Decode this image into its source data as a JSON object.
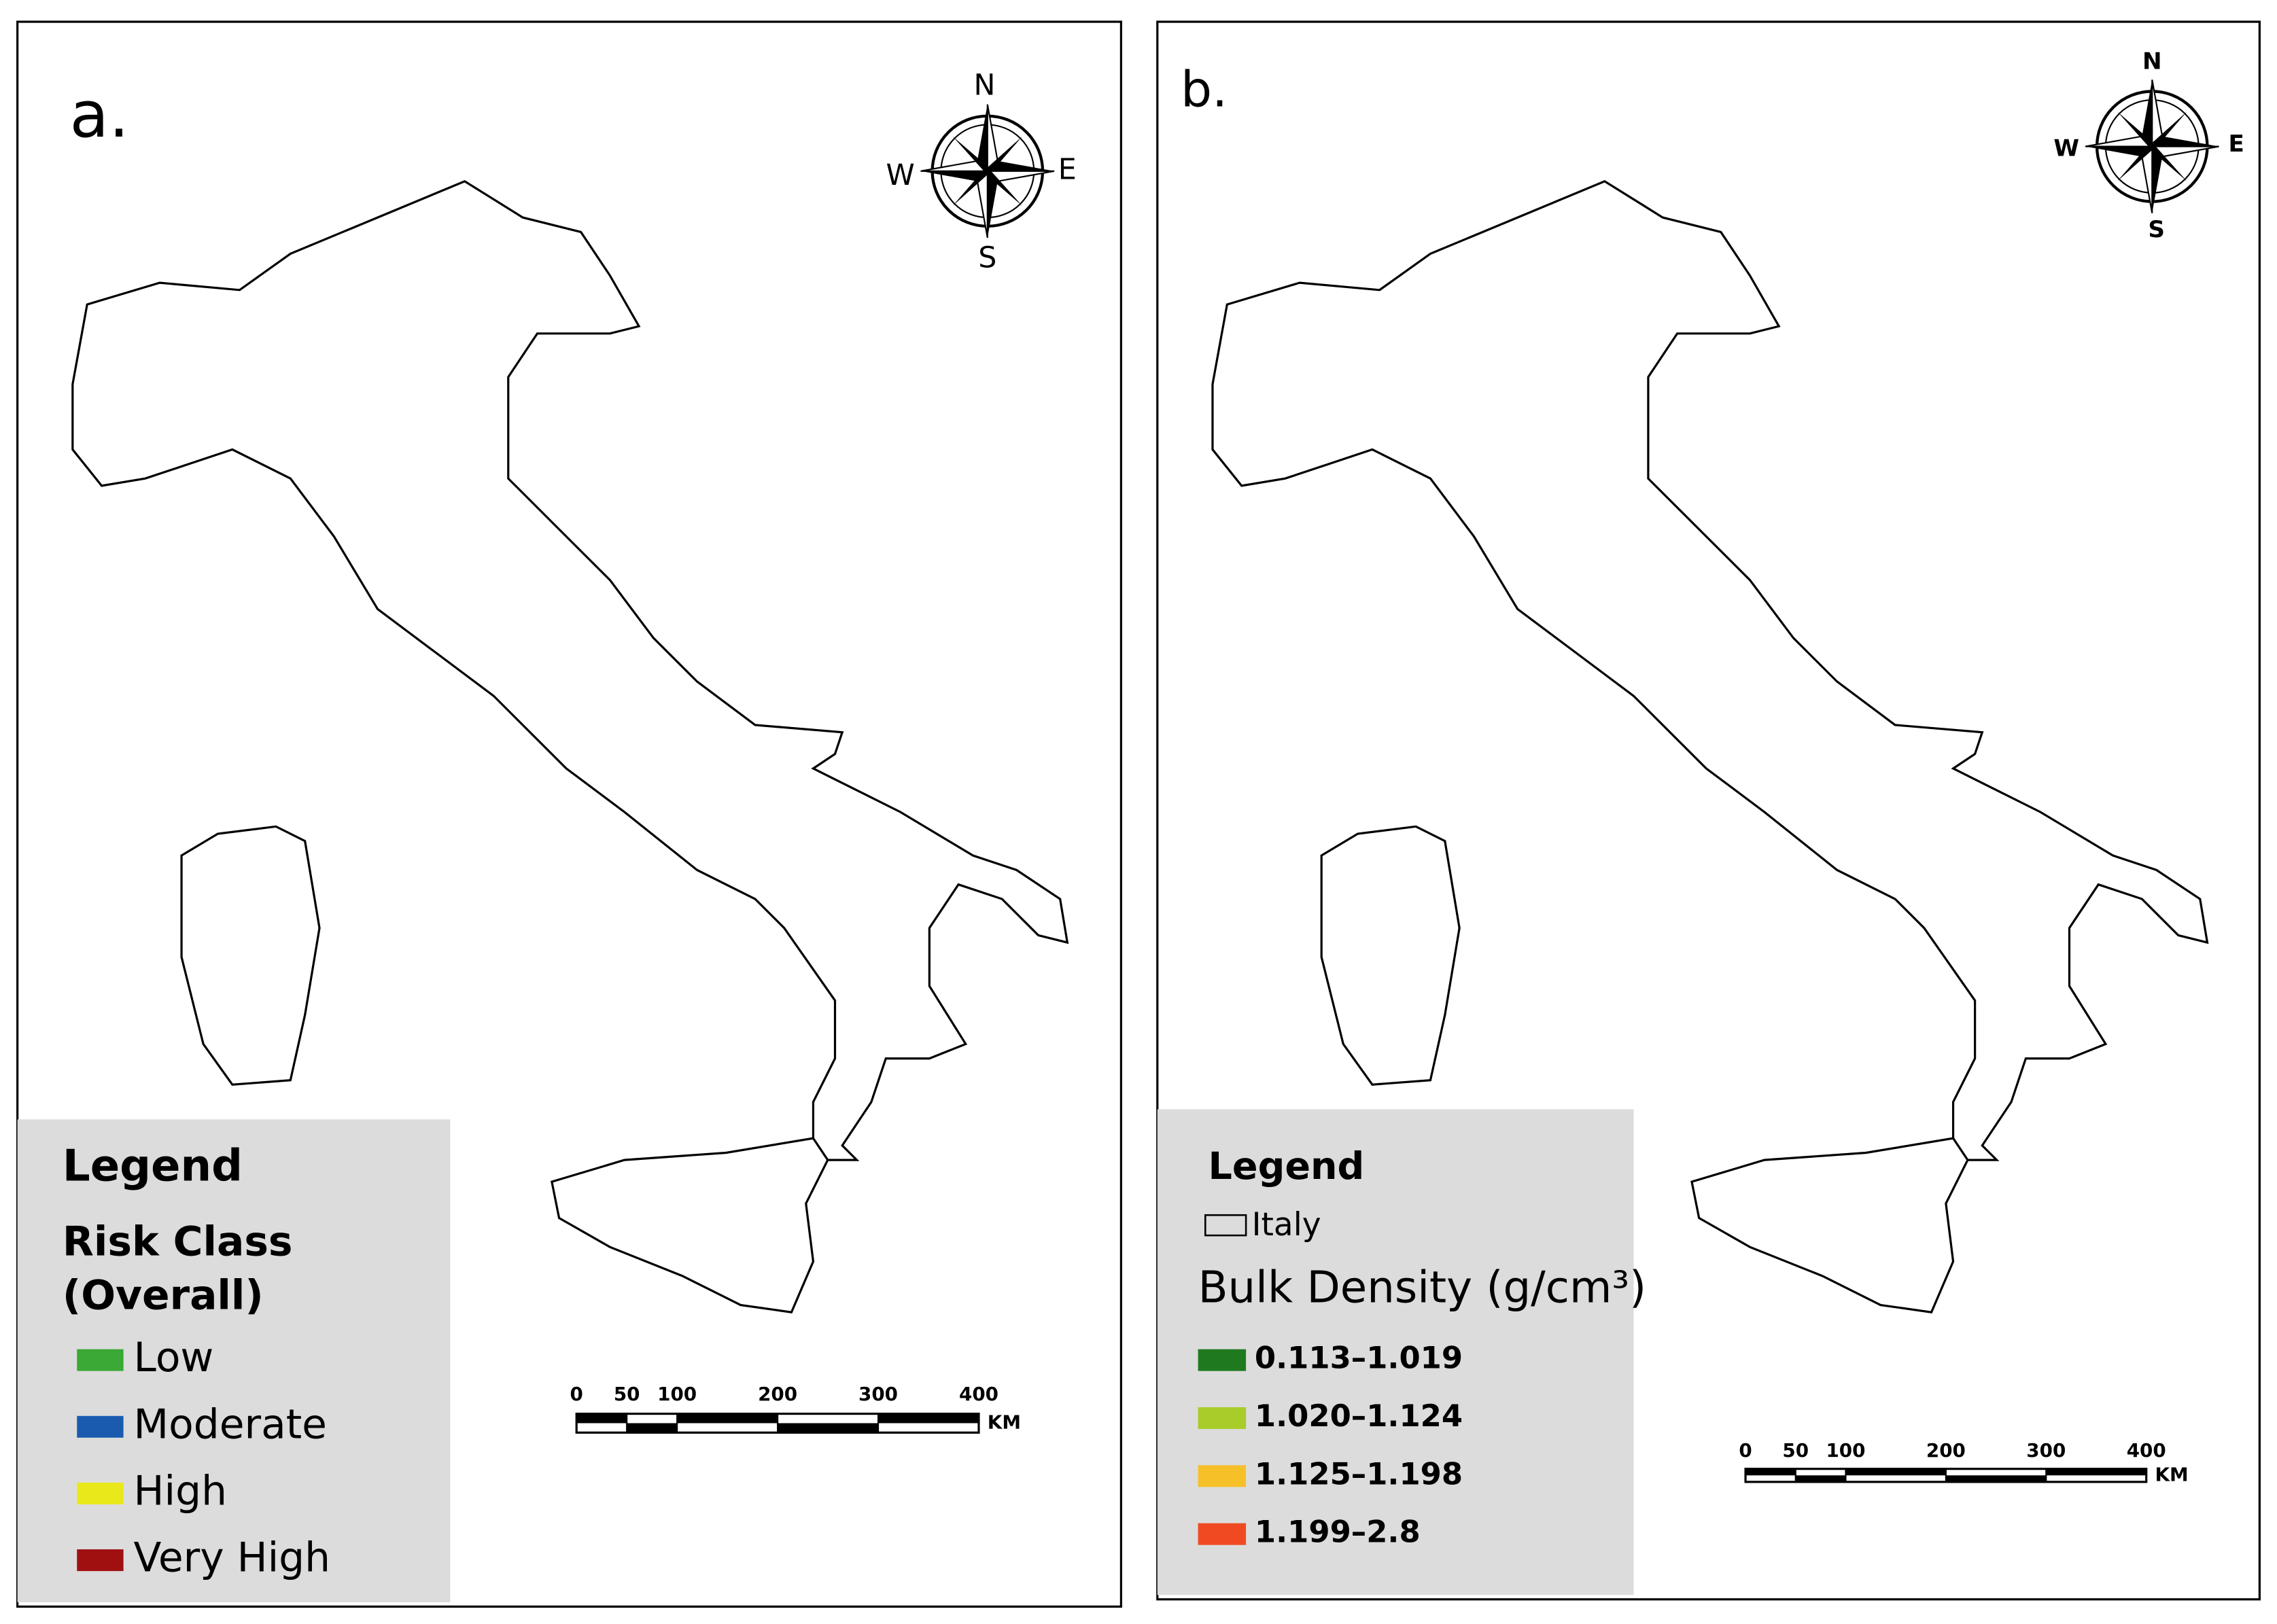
{
  "panels": [
    {
      "label": "a.",
      "compass": {
        "n": "N",
        "e": "E",
        "s": "S",
        "w": "W"
      },
      "legend": {
        "title": "Legend",
        "heading": [
          "Risk Class",
          "(Overall)"
        ],
        "items": [
          {
            "label": "Low",
            "color": "#3aa935"
          },
          {
            "label": "Moderate",
            "color": "#1a5bb0"
          },
          {
            "label": "High",
            "color": "#e8e81a"
          },
          {
            "label": "Very High",
            "color": "#a01010"
          }
        ]
      },
      "scale_bar": {
        "ticks": [
          0,
          50,
          100,
          200,
          300,
          400
        ],
        "unit": "KM"
      }
    },
    {
      "label": "b.",
      "compass": {
        "n": "N",
        "e": "E",
        "s": "S",
        "w": "W"
      },
      "legend": {
        "title": "Legend",
        "outline": "Italy",
        "heading": [
          "Bulk Density (g/cm³)"
        ],
        "items": [
          {
            "label": "0.113–1.019",
            "color": "#1f7a1f"
          },
          {
            "label": "1.020–1.124",
            "color": "#a8cc2a"
          },
          {
            "label": "1.125–1.198",
            "color": "#f6c029"
          },
          {
            "label": "1.199–2.8",
            "color": "#f04a22"
          }
        ]
      },
      "scale_bar": {
        "ticks": [
          0,
          50,
          100,
          200,
          300,
          400
        ],
        "unit": "KM"
      }
    }
  ]
}
